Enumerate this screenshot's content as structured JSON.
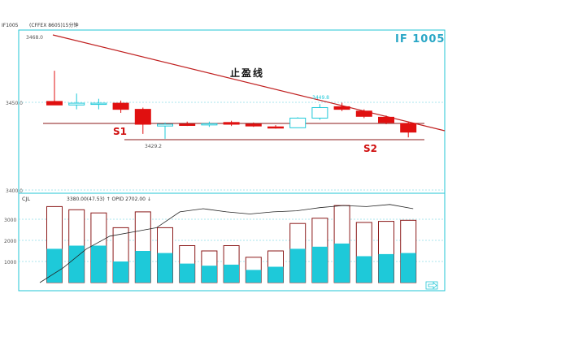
{
  "header": {
    "symbol": "IF1005",
    "source": "(CFFEX 8605)15分钟"
  },
  "watermark": "IF 1005",
  "annotations": {
    "take_profit": "止盈线",
    "s1": "S1",
    "s2": "S2",
    "high_label": "3449.8",
    "low_label": "3429.2",
    "top_label": "3468.0"
  },
  "volume_panel": {
    "indicator": "CJL",
    "readout": "3380.00(47.53) ↑ OPID 2702.00 ↓"
  },
  "colors": {
    "frame": "#22c6d6",
    "grid": "#8fdde6",
    "up": "#1ec9d9",
    "down": "#e01010",
    "support": "#8b1a1a",
    "trendline": "#c02020",
    "watermark": "#2aa7c6"
  },
  "chart_data": [
    {
      "type": "candlestick",
      "yticks": [
        "3468.0",
        "3450.0",
        "3400.0"
      ],
      "ylim": [
        3400,
        3470
      ],
      "candles": [
        {
          "open": 3450.5,
          "high": 3468.0,
          "low": 3449.0,
          "close": 3448.5
        },
        {
          "open": 3448.5,
          "high": 3455.0,
          "low": 3446.0,
          "close": 3449.5
        },
        {
          "open": 3449.5,
          "high": 3452.0,
          "low": 3446.0,
          "close": 3449.5
        },
        {
          "open": 3449.5,
          "high": 3451.0,
          "low": 3444.0,
          "close": 3446.0
        },
        {
          "open": 3446.0,
          "high": 3447.0,
          "low": 3432.0,
          "close": 3437.5
        },
        {
          "open": 3436.5,
          "high": 3438.5,
          "low": 3429.2,
          "close": 3437.5
        },
        {
          "open": 3437.5,
          "high": 3439.0,
          "low": 3436.5,
          "close": 3437.2
        },
        {
          "open": 3437.2,
          "high": 3439.0,
          "low": 3436.0,
          "close": 3437.8
        },
        {
          "open": 3438.5,
          "high": 3439.5,
          "low": 3436.5,
          "close": 3437.5
        },
        {
          "open": 3437.5,
          "high": 3438.5,
          "low": 3436.0,
          "close": 3436.5
        },
        {
          "open": 3436.0,
          "high": 3437.0,
          "low": 3435.0,
          "close": 3435.3
        },
        {
          "open": 3435.5,
          "high": 3441.5,
          "low": 3435.5,
          "close": 3441.0
        },
        {
          "open": 3441.0,
          "high": 3449.0,
          "low": 3440.0,
          "close": 3447.0
        },
        {
          "open": 3447.5,
          "high": 3449.8,
          "low": 3445.0,
          "close": 3446.0
        },
        {
          "open": 3445.0,
          "high": 3446.0,
          "low": 3441.0,
          "close": 3442.0
        },
        {
          "open": 3441.5,
          "high": 3442.5,
          "low": 3437.5,
          "close": 3438.5
        },
        {
          "open": 3438.0,
          "high": 3439.0,
          "low": 3430.0,
          "close": 3433.0
        }
      ]
    },
    {
      "type": "bar",
      "yticks": [
        "3000",
        "2000",
        "1000"
      ],
      "ylim": [
        0,
        3600
      ],
      "series": [
        {
          "values": [
            3600,
            3450,
            3300,
            2600,
            3350,
            2600,
            1750,
            1500,
            1750,
            1200,
            1500,
            2800,
            3050,
            3650,
            2850,
            2900,
            2950
          ]
        },
        {
          "values": [
            1600,
            1750,
            1750,
            1000,
            1500,
            1400,
            900,
            800,
            850,
            600,
            750,
            1600,
            1700,
            1850,
            1250,
            1350,
            1400
          ]
        },
        {
          "values": [
            0,
            700,
            1600,
            2200,
            2400,
            2600,
            3350,
            3500,
            3350,
            3250,
            3350,
            3400,
            3550,
            3650,
            3600,
            3700,
            3500
          ]
        }
      ]
    }
  ]
}
